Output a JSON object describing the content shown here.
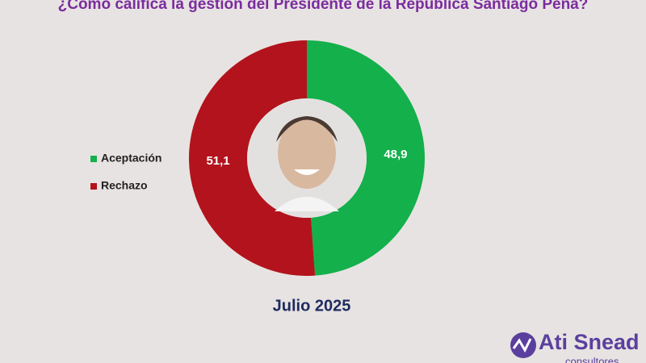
{
  "chart_data": {
    "type": "donut",
    "title": "¿Cómo califica la gestión del Presidente de la República Santiago Peña?",
    "subtitle": "Julio 2025",
    "categories": [
      "Aceptación",
      "Rechazo"
    ],
    "values": [
      48.9,
      51.1
    ],
    "value_labels": [
      "48,9",
      "51,1"
    ],
    "colors": [
      "#13b04b",
      "#b3131c"
    ],
    "legend": "left"
  },
  "logo": {
    "name": "Ati Snead",
    "tagline": "consultores"
  }
}
